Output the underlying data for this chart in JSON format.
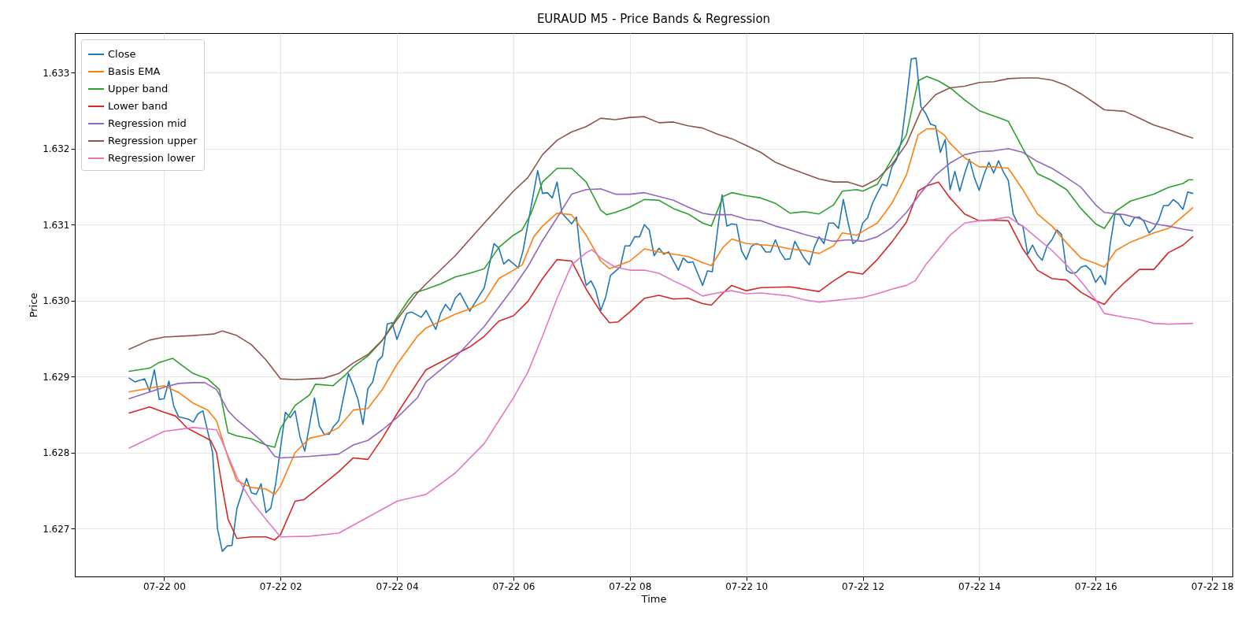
{
  "chart_data": {
    "type": "line",
    "title": "EURAUD M5 - Price Bands & Regression",
    "xlabel": "Time",
    "ylabel": "Price",
    "xlim": [
      "--07-21T22:28",
      "--07-22T18:21"
    ],
    "xticks": [
      {
        "value": "--07-22T00:00",
        "label": "07-22 00"
      },
      {
        "value": "--07-22T02:00",
        "label": "07-22 02"
      },
      {
        "value": "--07-22T04:00",
        "label": "07-22 04"
      },
      {
        "value": "--07-22T06:00",
        "label": "07-22 06"
      },
      {
        "value": "--07-22T08:00",
        "label": "07-22 08"
      },
      {
        "value": "--07-22T10:00",
        "label": "07-22 10"
      },
      {
        "value": "--07-22T12:00",
        "label": "07-22 12"
      },
      {
        "value": "--07-22T14:00",
        "label": "07-22 14"
      },
      {
        "value": "--07-22T16:00",
        "label": "07-22 16"
      },
      {
        "value": "--07-22T18:00",
        "label": "07-22 18"
      }
    ],
    "ylim": [
      1.62637,
      1.63352
    ],
    "yticks": [
      {
        "value": 1.627,
        "label": "1.627"
      },
      {
        "value": 1.628,
        "label": "1.628"
      },
      {
        "value": 1.629,
        "label": "1.629"
      },
      {
        "value": 1.63,
        "label": "1.630"
      },
      {
        "value": 1.631,
        "label": "1.631"
      },
      {
        "value": 1.632,
        "label": "1.632"
      },
      {
        "value": 1.633,
        "label": "1.633"
      }
    ],
    "grid": true,
    "legend": "top left",
    "series": [
      {
        "name": "Close",
        "color": "#1f77b4",
        "x": [
          "--07-21T23:24",
          "--07-21T23:30",
          "--07-21T23:40",
          "--07-21T23:45",
          "--07-21T23:50",
          "--07-21T23:55",
          "--07-22T00:00",
          "--07-22T00:05",
          "--07-22T00:10",
          "--07-22T00:15",
          "--07-22T00:25",
          "--07-22T00:30",
          "--07-22T00:35",
          "--07-22T00:40",
          "--07-22T00:50",
          "--07-22T00:55",
          "--07-22T01:00",
          "--07-22T01:05",
          "--07-22T01:10",
          "--07-22T01:15",
          "--07-22T01:25",
          "--07-22T01:30",
          "--07-22T01:35",
          "--07-22T01:40",
          "--07-22T01:45",
          "--07-22T01:50",
          "--07-22T01:55",
          "--07-22T02:05",
          "--07-22T02:10",
          "--07-22T02:15",
          "--07-22T02:20",
          "--07-22T02:25",
          "--07-22T02:35",
          "--07-22T02:40",
          "--07-22T02:45",
          "--07-22T02:50",
          "--07-22T02:55",
          "--07-22T03:00",
          "--07-22T03:10",
          "--07-22T03:15",
          "--07-22T03:20",
          "--07-22T03:25",
          "--07-22T03:30",
          "--07-22T03:35",
          "--07-22T03:40",
          "--07-22T03:45",
          "--07-22T03:50",
          "--07-22T03:55",
          "--07-22T04:00",
          "--07-22T04:10",
          "--07-22T04:15",
          "--07-22T04:25",
          "--07-22T04:30",
          "--07-22T04:40",
          "--07-22T04:45",
          "--07-22T04:50",
          "--07-22T04:55",
          "--07-22T05:00",
          "--07-22T05:05",
          "--07-22T05:15",
          "--07-22T05:30",
          "--07-22T05:40",
          "--07-22T05:45",
          "--07-22T05:50",
          "--07-22T05:55",
          "--07-22T06:05",
          "--07-22T06:10",
          "--07-22T06:25",
          "--07-22T06:30",
          "--07-22T06:35",
          "--07-22T06:40",
          "--07-22T06:45",
          "--07-22T06:50",
          "--07-22T07:00",
          "--07-22T07:05",
          "--07-22T07:10",
          "--07-22T07:15",
          "--07-22T07:20",
          "--07-22T07:25",
          "--07-22T07:30",
          "--07-22T07:35",
          "--07-22T07:40",
          "--07-22T07:50",
          "--07-22T07:55",
          "--07-22T08:00",
          "--07-22T08:05",
          "--07-22T08:10",
          "--07-22T08:15",
          "--07-22T08:20",
          "--07-22T08:25",
          "--07-22T08:30",
          "--07-22T08:35",
          "--07-22T08:40",
          "--07-22T08:50",
          "--07-22T08:55",
          "--07-22T09:00",
          "--07-22T09:05",
          "--07-22T09:15",
          "--07-22T09:20",
          "--07-22T09:25",
          "--07-22T09:35",
          "--07-22T09:40",
          "--07-22T09:45",
          "--07-22T09:50",
          "--07-22T09:55",
          "--07-22T10:00",
          "--07-22T10:05",
          "--07-22T10:10",
          "--07-22T10:15",
          "--07-22T10:20",
          "--07-22T10:25",
          "--07-22T10:30",
          "--07-22T10:35",
          "--07-22T10:40",
          "--07-22T10:45",
          "--07-22T10:50",
          "--07-22T10:55",
          "--07-22T11:00",
          "--07-22T11:05",
          "--07-22T11:10",
          "--07-22T11:15",
          "--07-22T11:20",
          "--07-22T11:25",
          "--07-22T11:30",
          "--07-22T11:35",
          "--07-22T11:40",
          "--07-22T11:45",
          "--07-22T11:50",
          "--07-22T11:55",
          "--07-22T12:00",
          "--07-22T12:05",
          "--07-22T12:10",
          "--07-22T12:15",
          "--07-22T12:20",
          "--07-22T12:25",
          "--07-22T12:30",
          "--07-22T12:35",
          "--07-22T12:40",
          "--07-22T12:45",
          "--07-22T12:50",
          "--07-22T12:55",
          "--07-22T13:00",
          "--07-22T13:05",
          "--07-22T13:10",
          "--07-22T13:15",
          "--07-22T13:20",
          "--07-22T13:25",
          "--07-22T13:30",
          "--07-22T13:35",
          "--07-22T13:40",
          "--07-22T13:45",
          "--07-22T13:50",
          "--07-22T13:55",
          "--07-22T14:00",
          "--07-22T14:05",
          "--07-22T14:10",
          "--07-22T14:15",
          "--07-22T14:20",
          "--07-22T14:25",
          "--07-22T14:30",
          "--07-22T14:35",
          "--07-22T14:40",
          "--07-22T14:45",
          "--07-22T14:50",
          "--07-22T14:55",
          "--07-22T15:00",
          "--07-22T15:05",
          "--07-22T15:10",
          "--07-22T15:15",
          "--07-22T15:20",
          "--07-22T15:25",
          "--07-22T15:30",
          "--07-22T15:35",
          "--07-22T15:40",
          "--07-22T15:45",
          "--07-22T15:50",
          "--07-22T15:55",
          "--07-22T16:00",
          "--07-22T16:05",
          "--07-22T16:10",
          "--07-22T16:15",
          "--07-22T16:20",
          "--07-22T16:25",
          "--07-22T16:30",
          "--07-22T16:35",
          "--07-22T16:40",
          "--07-22T16:45",
          "--07-22T16:50",
          "--07-22T16:55",
          "--07-22T17:00",
          "--07-22T17:05",
          "--07-22T17:10",
          "--07-22T17:15",
          "--07-22T17:20",
          "--07-22T17:25",
          "--07-22T17:30",
          "--07-22T17:35",
          "--07-22T17:40"
        ],
        "values": [
          1.62898,
          1.62893,
          1.62897,
          1.62881,
          1.62909,
          1.6287,
          1.62871,
          1.62894,
          1.62861,
          1.62847,
          1.62844,
          1.6284,
          1.62851,
          1.62855,
          1.628,
          1.627,
          1.6267,
          1.62677,
          1.62678,
          1.62726,
          1.62766,
          1.62747,
          1.62745,
          1.62759,
          1.62721,
          1.62727,
          1.62759,
          1.62853,
          1.62846,
          1.62855,
          1.62821,
          1.62802,
          1.62872,
          1.62835,
          1.62824,
          1.62824,
          1.62835,
          1.62842,
          1.62904,
          1.62888,
          1.62869,
          1.62837,
          1.62884,
          1.62893,
          1.6292,
          1.62927,
          1.62969,
          1.62971,
          1.62949,
          1.62983,
          1.62985,
          1.62978,
          1.62987,
          1.62962,
          1.62983,
          1.62995,
          1.62987,
          1.63003,
          1.6301,
          1.62986,
          1.63017,
          1.63075,
          1.63069,
          1.63048,
          1.63054,
          1.63043,
          1.63066,
          1.63171,
          1.63141,
          1.63142,
          1.63135,
          1.63156,
          1.63115,
          1.63101,
          1.6311,
          1.6305,
          1.6302,
          1.63026,
          1.63013,
          1.62987,
          1.63004,
          1.63033,
          1.63044,
          1.63072,
          1.63072,
          1.63084,
          1.63084,
          1.631,
          1.63093,
          1.63059,
          1.63069,
          1.63061,
          1.63064,
          1.6304,
          1.63056,
          1.6305,
          1.63051,
          1.6302,
          1.63039,
          1.63038,
          1.63139,
          1.63098,
          1.63101,
          1.631,
          1.63066,
          1.63054,
          1.63071,
          1.63075,
          1.63073,
          1.63064,
          1.63064,
          1.6308,
          1.63064,
          1.63054,
          1.63055,
          1.63078,
          1.63066,
          1.63055,
          1.63047,
          1.6307,
          1.63084,
          1.63075,
          1.63102,
          1.63102,
          1.63095,
          1.63133,
          1.63102,
          1.63075,
          1.6308,
          1.63102,
          1.63109,
          1.63128,
          1.63141,
          1.63153,
          1.63151,
          1.63176,
          1.63186,
          1.63211,
          1.63262,
          1.63318,
          1.63319,
          1.63255,
          1.63246,
          1.63232,
          1.6323,
          1.63195,
          1.63212,
          1.63146,
          1.6317,
          1.63144,
          1.63167,
          1.63186,
          1.63162,
          1.63145,
          1.63166,
          1.63182,
          1.63168,
          1.63184,
          1.63169,
          1.63158,
          1.63114,
          1.63101,
          1.63098,
          1.63061,
          1.63073,
          1.6306,
          1.63053,
          1.63072,
          1.6308,
          1.63093,
          1.63087,
          1.6304,
          1.63036,
          1.63037,
          1.63044,
          1.63046,
          1.6304,
          1.63024,
          1.63033,
          1.63021,
          1.63074,
          1.63114,
          1.63113,
          1.63101,
          1.63098,
          1.63109,
          1.6311,
          1.63104,
          1.63089,
          1.63095,
          1.63106,
          1.63125,
          1.63125,
          1.63133,
          1.63128,
          1.6312,
          1.63143,
          1.63141
        ]
      },
      {
        "name": "Basis EMA",
        "color": "#ff7f0e",
        "x": [
          "--07-21T23:24",
          "--07-22T00:00",
          "--07-22T00:15",
          "--07-22T00:30",
          "--07-22T00:45",
          "--07-22T00:54",
          "--07-22T01:06",
          "--07-22T01:15",
          "--07-22T01:30",
          "--07-22T01:45",
          "--07-22T01:54",
          "--07-22T02:00",
          "--07-22T02:15",
          "--07-22T02:30",
          "--07-22T02:45",
          "--07-22T03:00",
          "--07-22T03:15",
          "--07-22T03:30",
          "--07-22T03:45",
          "--07-22T04:00",
          "--07-22T04:21",
          "--07-22T04:30",
          "--07-22T04:45",
          "--07-22T05:00",
          "--07-22T05:15",
          "--07-22T05:30",
          "--07-22T05:45",
          "--07-22T06:00",
          "--07-22T06:09",
          "--07-22T06:21",
          "--07-22T06:30",
          "--07-22T06:45",
          "--07-22T07:00",
          "--07-22T07:15",
          "--07-22T07:30",
          "--07-22T07:39",
          "--07-22T08:00",
          "--07-22T08:15",
          "--07-22T08:30",
          "--07-22T08:45",
          "--07-22T09:00",
          "--07-22T09:15",
          "--07-22T09:24",
          "--07-22T09:36",
          "--07-22T09:45",
          "--07-22T10:00",
          "--07-22T10:30",
          "--07-22T10:45",
          "--07-22T11:00",
          "--07-22T11:15",
          "--07-22T11:30",
          "--07-22T11:39",
          "--07-22T11:54",
          "--07-22T12:00",
          "--07-22T12:15",
          "--07-22T12:30",
          "--07-22T12:45",
          "--07-22T12:57",
          "--07-22T13:06",
          "--07-22T13:15",
          "--07-22T13:24",
          "--07-22T13:30",
          "--07-22T13:45",
          "--07-22T14:00",
          "--07-22T14:15",
          "--07-22T14:30",
          "--07-22T14:45",
          "--07-22T15:00",
          "--07-22T15:15",
          "--07-22T15:30",
          "--07-22T15:45",
          "--07-22T16:00",
          "--07-22T16:09",
          "--07-22T16:21",
          "--07-22T16:36",
          "--07-22T17:00",
          "--07-22T17:15",
          "--07-22T17:30",
          "--07-22T17:40"
        ],
        "values": [
          1.6288,
          1.62888,
          1.62879,
          1.62865,
          1.62856,
          1.62842,
          1.62793,
          1.62763,
          1.62754,
          1.62752,
          1.62745,
          1.62756,
          1.628,
          1.62819,
          1.62823,
          1.62833,
          1.62856,
          1.62858,
          1.62883,
          1.62916,
          1.62953,
          1.62964,
          1.62973,
          1.62982,
          1.62989,
          1.62999,
          1.63029,
          1.6304,
          1.63047,
          1.63084,
          1.63098,
          1.63115,
          1.63113,
          1.63086,
          1.63052,
          1.63042,
          1.63052,
          1.63068,
          1.63064,
          1.63061,
          1.63058,
          1.6305,
          1.63046,
          1.6307,
          1.63081,
          1.63075,
          1.63072,
          1.63068,
          1.63066,
          1.63062,
          1.63072,
          1.63089,
          1.63086,
          1.63091,
          1.63102,
          1.63128,
          1.63165,
          1.63218,
          1.63226,
          1.63226,
          1.63218,
          1.63207,
          1.63188,
          1.63176,
          1.63176,
          1.63174,
          1.63146,
          1.63114,
          1.63098,
          1.63076,
          1.63056,
          1.63049,
          1.63044,
          1.63066,
          1.63077,
          1.63089,
          1.63095,
          1.63111,
          1.63122
        ]
      },
      {
        "name": "Upper band",
        "color": "#2ca02c",
        "x": [
          "--07-21T23:24",
          "--07-21T23:45",
          "--07-21T23:54",
          "--07-22T00:09",
          "--07-22T00:18",
          "--07-22T00:30",
          "--07-22T00:45",
          "--07-22T00:57",
          "--07-22T01:06",
          "--07-22T01:15",
          "--07-22T01:30",
          "--07-22T01:45",
          "--07-22T01:54",
          "--07-22T02:00",
          "--07-22T02:15",
          "--07-22T02:30",
          "--07-22T02:36",
          "--07-22T02:54",
          "--07-22T03:06",
          "--07-22T03:15",
          "--07-22T03:30",
          "--07-22T03:45",
          "--07-22T04:00",
          "--07-22T04:12",
          "--07-22T04:18",
          "--07-22T04:30",
          "--07-22T04:45",
          "--07-22T05:00",
          "--07-22T05:15",
          "--07-22T05:30",
          "--07-22T05:45",
          "--07-22T06:00",
          "--07-22T06:09",
          "--07-22T06:18",
          "--07-22T06:30",
          "--07-22T06:45",
          "--07-22T07:00",
          "--07-22T07:15",
          "--07-22T07:30",
          "--07-22T07:36",
          "--07-22T07:45",
          "--07-22T08:00",
          "--07-22T08:15",
          "--07-22T08:30",
          "--07-22T08:45",
          "--07-22T09:00",
          "--07-22T09:15",
          "--07-22T09:24",
          "--07-22T09:36",
          "--07-22T09:45",
          "--07-22T10:00",
          "--07-22T10:15",
          "--07-22T10:30",
          "--07-22T10:45",
          "--07-22T11:00",
          "--07-22T11:15",
          "--07-22T11:30",
          "--07-22T11:39",
          "--07-22T11:54",
          "--07-22T12:00",
          "--07-22T12:15",
          "--07-22T12:30",
          "--07-22T12:45",
          "--07-22T12:57",
          "--07-22T13:06",
          "--07-22T13:18",
          "--07-22T13:30",
          "--07-22T13:45",
          "--07-22T14:00",
          "--07-22T14:15",
          "--07-22T14:30",
          "--07-22T14:45",
          "--07-22T15:00",
          "--07-22T15:15",
          "--07-22T15:30",
          "--07-22T15:45",
          "--07-22T16:00",
          "--07-22T16:09",
          "--07-22T16:21",
          "--07-22T16:36",
          "--07-22T17:00",
          "--07-22T17:15",
          "--07-22T17:30",
          "--07-22T17:36",
          "--07-22T17:40"
        ],
        "values": [
          1.62907,
          1.62911,
          1.62918,
          1.62924,
          1.62915,
          1.62904,
          1.62897,
          1.62883,
          1.62826,
          1.62822,
          1.62818,
          1.6281,
          1.62807,
          1.62832,
          1.62862,
          1.62876,
          1.6289,
          1.62888,
          1.62901,
          1.62913,
          1.62927,
          1.62948,
          1.62978,
          1.63001,
          1.6301,
          1.63015,
          1.63022,
          1.63031,
          1.63036,
          1.63042,
          1.6307,
          1.63086,
          1.63093,
          1.63114,
          1.63156,
          1.63174,
          1.63174,
          1.63156,
          1.63119,
          1.63113,
          1.63116,
          1.63123,
          1.63133,
          1.63132,
          1.63121,
          1.63114,
          1.63102,
          1.63098,
          1.63137,
          1.63142,
          1.63138,
          1.63135,
          1.63128,
          1.63115,
          1.63117,
          1.63114,
          1.63126,
          1.63144,
          1.63146,
          1.63144,
          1.63153,
          1.63186,
          1.63218,
          1.63289,
          1.63295,
          1.63289,
          1.6328,
          1.63264,
          1.6325,
          1.63243,
          1.63236,
          1.632,
          1.63167,
          1.63158,
          1.63146,
          1.63121,
          1.63101,
          1.63095,
          1.63118,
          1.63131,
          1.6314,
          1.63149,
          1.63154,
          1.63159,
          1.63159
        ]
      },
      {
        "name": "Lower band",
        "color": "#d62728",
        "x": [
          "--07-21T23:24",
          "--07-21T23:45",
          "--07-22T00:00",
          "--07-22T00:12",
          "--07-22T00:24",
          "--07-22T00:36",
          "--07-22T00:48",
          "--07-22T00:54",
          "--07-22T01:00",
          "--07-22T01:06",
          "--07-22T01:15",
          "--07-22T01:30",
          "--07-22T01:45",
          "--07-22T01:54",
          "--07-22T02:00",
          "--07-22T02:15",
          "--07-22T02:24",
          "--07-22T02:36",
          "--07-22T03:00",
          "--07-22T03:15",
          "--07-22T03:30",
          "--07-22T03:45",
          "--07-22T04:00",
          "--07-22T04:21",
          "--07-22T04:30",
          "--07-22T05:00",
          "--07-22T05:15",
          "--07-22T05:30",
          "--07-22T05:45",
          "--07-22T06:00",
          "--07-22T06:15",
          "--07-22T06:30",
          "--07-22T06:45",
          "--07-22T07:00",
          "--07-22T07:15",
          "--07-22T07:30",
          "--07-22T07:39",
          "--07-22T07:48",
          "--07-22T08:00",
          "--07-22T08:15",
          "--07-22T08:30",
          "--07-22T08:45",
          "--07-22T09:00",
          "--07-22T09:15",
          "--07-22T09:24",
          "--07-22T09:36",
          "--07-22T09:45",
          "--07-22T10:00",
          "--07-22T10:15",
          "--07-22T10:45",
          "--07-22T11:00",
          "--07-22T11:15",
          "--07-22T11:30",
          "--07-22T11:45",
          "--07-22T12:00",
          "--07-22T12:15",
          "--07-22T12:30",
          "--07-22T12:45",
          "--07-22T12:57",
          "--07-22T13:06",
          "--07-22T13:18",
          "--07-22T13:30",
          "--07-22T13:45",
          "--07-22T14:00",
          "--07-22T14:15",
          "--07-22T14:30",
          "--07-22T14:45",
          "--07-22T15:00",
          "--07-22T15:15",
          "--07-22T15:30",
          "--07-22T15:45",
          "--07-22T16:00",
          "--07-22T16:09",
          "--07-22T16:18",
          "--07-22T16:30",
          "--07-22T16:45",
          "--07-22T17:00",
          "--07-22T17:15",
          "--07-22T17:30",
          "--07-22T17:40"
        ],
        "values": [
          1.62852,
          1.6286,
          1.62853,
          1.62848,
          1.62832,
          1.62824,
          1.62816,
          1.628,
          1.62754,
          1.62712,
          1.62687,
          1.62689,
          1.62689,
          1.62685,
          1.62692,
          1.62736,
          1.62738,
          1.6275,
          1.62775,
          1.62793,
          1.62791,
          1.62819,
          1.62851,
          1.62892,
          1.62909,
          1.62929,
          1.62939,
          1.62953,
          1.62973,
          1.6298,
          1.62999,
          1.63029,
          1.63054,
          1.63052,
          1.63015,
          1.62985,
          1.62971,
          1.62972,
          1.62985,
          1.63003,
          1.63007,
          1.63002,
          1.63003,
          1.62996,
          1.62994,
          1.6301,
          1.6302,
          1.63013,
          1.63017,
          1.63018,
          1.63015,
          1.63012,
          1.63026,
          1.63038,
          1.63035,
          1.63054,
          1.63077,
          1.63103,
          1.63144,
          1.63151,
          1.63156,
          1.63135,
          1.63114,
          1.63105,
          1.63106,
          1.63105,
          1.63068,
          1.6304,
          1.63029,
          1.63027,
          1.63011,
          1.63,
          1.62995,
          1.63009,
          1.63024,
          1.63041,
          1.63041,
          1.63063,
          1.63073,
          1.63084
        ]
      },
      {
        "name": "Regression mid",
        "color": "#9467bd",
        "x": [
          "--07-21T23:24",
          "--07-22T00:00",
          "--07-22T00:15",
          "--07-22T00:30",
          "--07-22T00:42",
          "--07-22T00:54",
          "--07-22T01:06",
          "--07-22T01:15",
          "--07-22T01:30",
          "--07-22T01:45",
          "--07-22T01:54",
          "--07-22T02:00",
          "--07-22T02:30",
          "--07-22T03:00",
          "--07-22T03:15",
          "--07-22T03:30",
          "--07-22T03:45",
          "--07-22T04:00",
          "--07-22T04:21",
          "--07-22T04:30",
          "--07-22T05:00",
          "--07-22T05:30",
          "--07-22T06:00",
          "--07-22T06:15",
          "--07-22T06:30",
          "--07-22T06:45",
          "--07-22T07:00",
          "--07-22T07:15",
          "--07-22T07:30",
          "--07-22T07:45",
          "--07-22T08:00",
          "--07-22T08:15",
          "--07-22T08:30",
          "--07-22T08:45",
          "--07-22T09:00",
          "--07-22T09:15",
          "--07-22T09:24",
          "--07-22T09:45",
          "--07-22T10:00",
          "--07-22T10:15",
          "--07-22T10:30",
          "--07-22T10:45",
          "--07-22T11:00",
          "--07-22T11:15",
          "--07-22T11:30",
          "--07-22T11:45",
          "--07-22T12:00",
          "--07-22T12:15",
          "--07-22T12:30",
          "--07-22T12:45",
          "--07-22T13:00",
          "--07-22T13:15",
          "--07-22T13:30",
          "--07-22T13:45",
          "--07-22T14:00",
          "--07-22T14:15",
          "--07-22T14:30",
          "--07-22T14:45",
          "--07-22T15:00",
          "--07-22T15:15",
          "--07-22T15:30",
          "--07-22T15:45",
          "--07-22T16:00",
          "--07-22T16:09",
          "--07-22T16:30",
          "--07-22T16:45",
          "--07-22T17:00",
          "--07-22T17:15",
          "--07-22T17:30",
          "--07-22T17:40"
        ],
        "values": [
          1.62871,
          1.62886,
          1.62891,
          1.62892,
          1.62892,
          1.62883,
          1.62855,
          1.62843,
          1.62827,
          1.6281,
          1.62795,
          1.62793,
          1.62795,
          1.62798,
          1.6281,
          1.62816,
          1.6283,
          1.62846,
          1.62872,
          1.62893,
          1.62925,
          1.62966,
          1.63017,
          1.63045,
          1.63079,
          1.63109,
          1.6314,
          1.63146,
          1.63147,
          1.6314,
          1.6314,
          1.63142,
          1.63137,
          1.63132,
          1.63123,
          1.63115,
          1.63113,
          1.63113,
          1.63107,
          1.63105,
          1.63098,
          1.63093,
          1.63087,
          1.63082,
          1.63078,
          1.6308,
          1.63078,
          1.63084,
          1.63096,
          1.63116,
          1.63142,
          1.63165,
          1.63181,
          1.63192,
          1.63196,
          1.63197,
          1.632,
          1.63195,
          1.63183,
          1.63174,
          1.63162,
          1.63149,
          1.63126,
          1.63116,
          1.63113,
          1.63108,
          1.63101,
          1.63098,
          1.63094,
          1.63092
        ]
      },
      {
        "name": "Regression upper",
        "color": "#8c564b",
        "x": [
          "--07-21T23:24",
          "--07-21T23:45",
          "--07-22T00:00",
          "--07-22T00:30",
          "--07-22T00:51",
          "--07-22T01:00",
          "--07-22T01:15",
          "--07-22T01:30",
          "--07-22T01:45",
          "--07-22T02:00",
          "--07-22T02:15",
          "--07-22T02:30",
          "--07-22T02:45",
          "--07-22T03:00",
          "--07-22T03:15",
          "--07-22T03:30",
          "--07-22T03:45",
          "--07-22T04:00",
          "--07-22T04:21",
          "--07-22T04:30",
          "--07-22T05:00",
          "--07-22T05:30",
          "--07-22T06:00",
          "--07-22T06:15",
          "--07-22T06:30",
          "--07-22T06:45",
          "--07-22T07:00",
          "--07-22T07:15",
          "--07-22T07:30",
          "--07-22T07:45",
          "--07-22T08:00",
          "--07-22T08:15",
          "--07-22T08:30",
          "--07-22T08:45",
          "--07-22T09:00",
          "--07-22T09:15",
          "--07-22T09:30",
          "--07-22T09:45",
          "--07-22T10:00",
          "--07-22T10:15",
          "--07-22T10:30",
          "--07-22T10:45",
          "--07-22T11:00",
          "--07-22T11:15",
          "--07-22T11:30",
          "--07-22T11:45",
          "--07-22T12:00",
          "--07-22T12:15",
          "--07-22T12:30",
          "--07-22T12:45",
          "--07-22T13:00",
          "--07-22T13:15",
          "--07-22T13:30",
          "--07-22T13:45",
          "--07-22T14:00",
          "--07-22T14:15",
          "--07-22T14:30",
          "--07-22T14:45",
          "--07-22T15:00",
          "--07-22T15:15",
          "--07-22T15:30",
          "--07-22T15:45",
          "--07-22T16:00",
          "--07-22T16:09",
          "--07-22T16:30",
          "--07-22T16:45",
          "--07-22T17:00",
          "--07-22T17:15",
          "--07-22T17:30",
          "--07-22T17:40"
        ],
        "values": [
          1.62936,
          1.62948,
          1.62952,
          1.62954,
          1.62956,
          1.6296,
          1.62954,
          1.62942,
          1.62922,
          1.62897,
          1.62896,
          1.62897,
          1.62898,
          1.62904,
          1.62918,
          1.62929,
          1.62948,
          1.62975,
          1.6301,
          1.63022,
          1.63059,
          1.63102,
          1.63144,
          1.63162,
          1.63192,
          1.63211,
          1.63222,
          1.63229,
          1.6324,
          1.63238,
          1.63241,
          1.63242,
          1.63234,
          1.63235,
          1.6323,
          1.63227,
          1.63219,
          1.63213,
          1.63204,
          1.63195,
          1.63182,
          1.63174,
          1.63167,
          1.6316,
          1.63156,
          1.63156,
          1.6315,
          1.6316,
          1.63179,
          1.63206,
          1.6325,
          1.63271,
          1.6328,
          1.63282,
          1.63287,
          1.63288,
          1.63292,
          1.63293,
          1.63293,
          1.6329,
          1.63283,
          1.63272,
          1.63259,
          1.63251,
          1.63249,
          1.6324,
          1.63231,
          1.63225,
          1.63218,
          1.63214
        ]
      },
      {
        "name": "Regression lower",
        "color": "#e377c2",
        "x": [
          "--07-21T23:24",
          "--07-22T00:00",
          "--07-22T00:30",
          "--07-22T00:54",
          "--07-22T01:00",
          "--07-22T01:15",
          "--07-22T01:30",
          "--07-22T01:45",
          "--07-22T02:00",
          "--07-22T02:30",
          "--07-22T03:00",
          "--07-22T03:30",
          "--07-22T04:00",
          "--07-22T04:30",
          "--07-22T05:00",
          "--07-22T05:30",
          "--07-22T06:00",
          "--07-22T06:15",
          "--07-22T06:30",
          "--07-22T06:45",
          "--07-22T07:00",
          "--07-22T07:15",
          "--07-22T07:21",
          "--07-22T07:30",
          "--07-22T07:45",
          "--07-22T08:00",
          "--07-22T08:15",
          "--07-22T08:30",
          "--07-22T08:45",
          "--07-22T09:00",
          "--07-22T09:15",
          "--07-22T09:30",
          "--07-22T09:45",
          "--07-22T10:00",
          "--07-22T10:15",
          "--07-22T10:45",
          "--07-22T11:00",
          "--07-22T11:15",
          "--07-22T11:45",
          "--07-22T12:00",
          "--07-22T12:15",
          "--07-22T12:30",
          "--07-22T12:45",
          "--07-22T12:54",
          "--07-22T13:06",
          "--07-22T13:30",
          "--07-22T13:45",
          "--07-22T14:00",
          "--07-22T14:15",
          "--07-22T14:30",
          "--07-22T14:45",
          "--07-22T15:00",
          "--07-22T15:15",
          "--07-22T15:30",
          "--07-22T15:45",
          "--07-22T16:00",
          "--07-22T16:09",
          "--07-22T16:30",
          "--07-22T16:45",
          "--07-22T17:00",
          "--07-22T17:15",
          "--07-22T17:40"
        ],
        "values": [
          1.62806,
          1.62828,
          1.62833,
          1.6283,
          1.62814,
          1.62768,
          1.62736,
          1.62712,
          1.62689,
          1.6269,
          1.62694,
          1.62715,
          1.62736,
          1.62745,
          1.62773,
          1.62812,
          1.62872,
          1.62906,
          1.62953,
          1.63003,
          1.63047,
          1.63063,
          1.63067,
          1.63056,
          1.63044,
          1.6304,
          1.6304,
          1.63036,
          1.63026,
          1.63017,
          1.63006,
          1.6301,
          1.63013,
          1.63009,
          1.6301,
          1.63006,
          1.63001,
          1.62998,
          1.63002,
          1.63004,
          1.63009,
          1.63015,
          1.6302,
          1.63026,
          1.63049,
          1.63086,
          1.63102,
          1.63105,
          1.63107,
          1.6311,
          1.63098,
          1.63082,
          1.63066,
          1.63047,
          1.63025,
          1.63001,
          1.62983,
          1.62978,
          1.62975,
          1.6297,
          1.62969,
          1.6297
        ]
      }
    ]
  }
}
